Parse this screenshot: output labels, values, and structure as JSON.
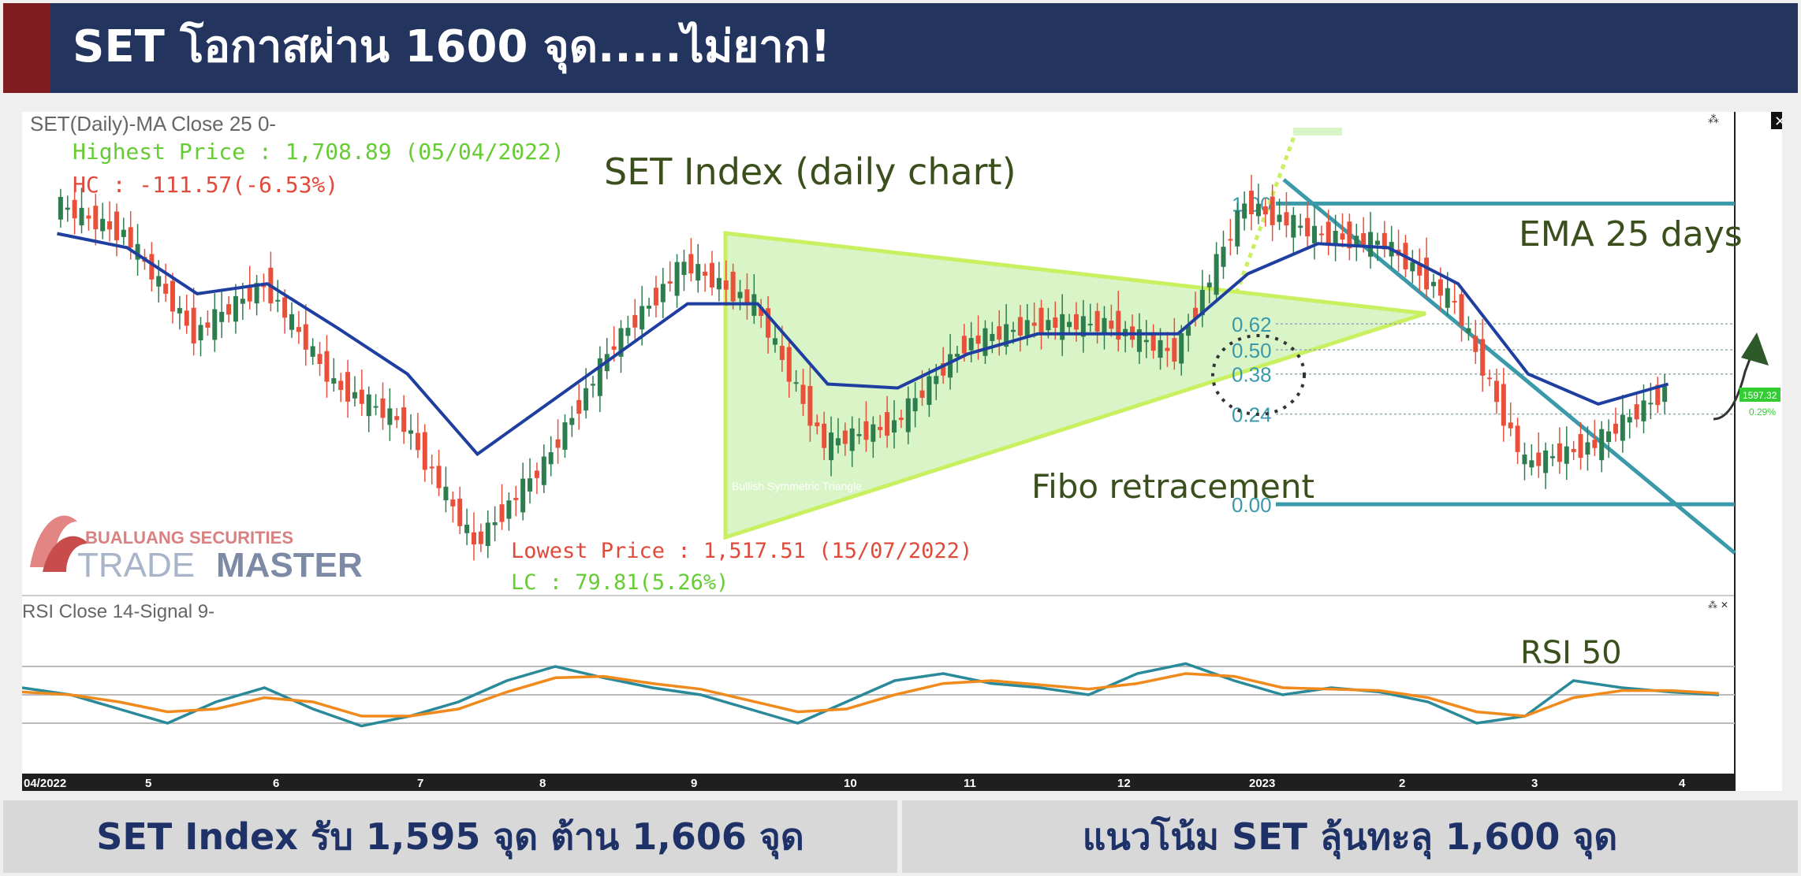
{
  "header": {
    "title": "SET โอกาสผ่าน 1600 จุด.....ไม่ยาก!",
    "accent_color": "#7e1c1f",
    "background_color": "#23345e"
  },
  "footer": {
    "left_text": "SET Index รับ 1,595 จุด ต้าน 1,606 จุด",
    "right_text": "แนวโน้ม SET ลุ้นทะลุ 1,600 จุด"
  },
  "price_panel": {
    "indicator_header": "SET(Daily)-MA  Close 25 0-",
    "chart_title": "SET Index (daily chart)",
    "highest_label": "Highest Price : 1,708.89 (05/04/2022)",
    "hc_label": "HC : -111.57(-6.53%)",
    "lowest_label": "Lowest Price : 1,517.51 (15/07/2022)",
    "lc_label": "LC : 79.81(5.26%)",
    "ema_label": "EMA 25 days",
    "fibo_label": "Fibo retracement",
    "pattern_label": "Bullish Symmetric Triangle",
    "last_price_tag": "1597.32",
    "last_change_tag": "0.29%",
    "close_icon": "close-icon",
    "expand_icon": "expand-icon"
  },
  "rsi_panel": {
    "indicator_header": "RSI  Close 14-Signal  9-",
    "rsi_label": "RSI 50"
  },
  "logo": {
    "line1": "BUALUANG SECURITIES",
    "line2a": "TRADE",
    "line2b": "MASTER"
  },
  "colors": {
    "up_candle": "#2e7d4f",
    "down_candle": "#e8503a",
    "ema_line": "#1f3fa0",
    "rsi_line": "#2a8a9a",
    "rsi_signal": "#f08a1c",
    "fibo_line": "#3a9aaa",
    "triangle_fill": "#d9f5c8",
    "triangle_edge": "#c9f060",
    "annotation_green": "#3a4f1c",
    "high_green": "#66cc33",
    "low_red": "#e04a3a"
  },
  "chart_data": [
    {
      "type": "candlestick",
      "title": "SET Index (daily chart)",
      "x_ticks": [
        "04/2022",
        "5",
        "6",
        "7",
        "8",
        "9",
        "10",
        "11",
        "12",
        "2023",
        "2",
        "3",
        "4"
      ],
      "ylim": [
        1500,
        1720
      ],
      "x": [
        "2022-04",
        "2022-05",
        "2022-05b",
        "2022-06",
        "2022-06b",
        "2022-07",
        "2022-07b",
        "2022-08",
        "2022-08b",
        "2022-09",
        "2022-09b",
        "2022-10",
        "2022-10b",
        "2022-11",
        "2022-11b",
        "2022-12",
        "2022-12b",
        "2023-01",
        "2023-01b",
        "2023-02",
        "2023-02b",
        "2023-03",
        "2023-03b",
        "2023-04"
      ],
      "close": [
        1690,
        1675,
        1625,
        1650,
        1600,
        1580,
        1520,
        1560,
        1620,
        1660,
        1640,
        1570,
        1580,
        1620,
        1630,
        1630,
        1615,
        1690,
        1675,
        1670,
        1640,
        1560,
        1570,
        1597
      ],
      "ema": [
        1675,
        1668,
        1645,
        1650,
        1628,
        1605,
        1565,
        1590,
        1615,
        1640,
        1640,
        1600,
        1598,
        1615,
        1625,
        1625,
        1625,
        1655,
        1670,
        1668,
        1650,
        1605,
        1590,
        1600
      ],
      "fibo_levels": [
        {
          "ratio": "1.00",
          "price": 1690
        },
        {
          "ratio": "0.62",
          "price": 1630
        },
        {
          "ratio": "0.50",
          "price": 1617
        },
        {
          "ratio": "0.38",
          "price": 1605
        },
        {
          "ratio": "0.24",
          "price": 1585
        },
        {
          "ratio": "0.00",
          "price": 1540
        }
      ],
      "pattern": "Bullish Symmetric Triangle",
      "highest": {
        "value": 1708.89,
        "date": "05/04/2022"
      },
      "lowest": {
        "value": 1517.51,
        "date": "15/07/2022"
      },
      "last_price": 1597.32
    },
    {
      "type": "line",
      "title": "RSI  Close 14-Signal  9-",
      "ylim": [
        0,
        100
      ],
      "reference_lines": [
        70,
        50,
        30
      ],
      "series": [
        {
          "values": [
            55,
            50,
            40,
            30,
            45,
            55,
            40,
            28,
            35,
            45,
            60,
            70,
            62,
            55,
            50,
            40,
            30,
            45,
            60,
            65,
            58,
            55,
            50,
            65,
            72,
            60,
            50,
            55,
            52,
            45,
            30,
            35,
            60,
            55,
            52,
            50
          ]
        },
        {
          "values": [
            52,
            50,
            45,
            38,
            40,
            48,
            45,
            35,
            35,
            40,
            52,
            62,
            63,
            58,
            54,
            46,
            38,
            40,
            50,
            58,
            60,
            57,
            54,
            58,
            65,
            63,
            55,
            54,
            53,
            48,
            38,
            35,
            48,
            53,
            53,
            51
          ]
        }
      ]
    }
  ]
}
